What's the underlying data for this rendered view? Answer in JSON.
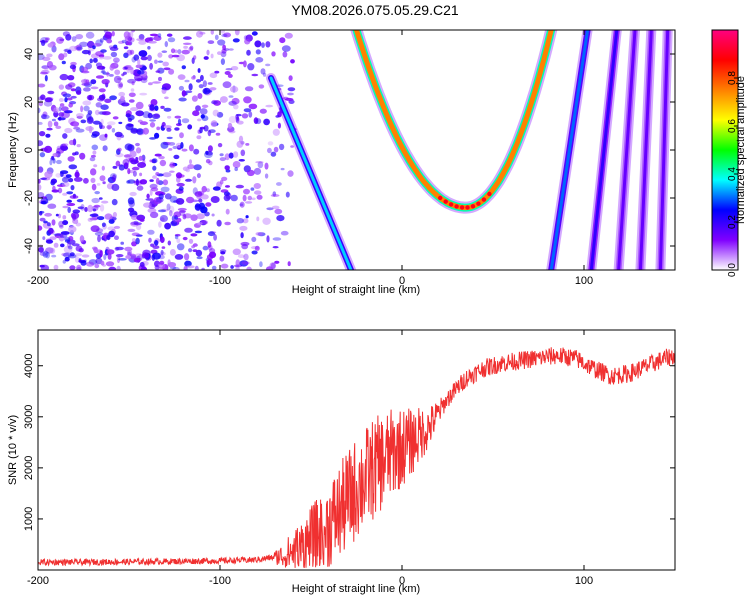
{
  "title": "YM08.2026.075.05.29.C21",
  "chart_data": [
    {
      "type": "heatmap",
      "xlabel": "Height of straight line (km)",
      "ylabel": "Frequency (Hz)",
      "xlim": [
        -200,
        150
      ],
      "ylim": [
        -50,
        50
      ],
      "xticks": [
        -200,
        -100,
        0,
        100
      ],
      "yticks": [
        -40,
        -20,
        0,
        20,
        40
      ],
      "colorbar": {
        "label": "Normalized spectral amplitude",
        "range": [
          0,
          1
        ],
        "ticks": [
          "0.0",
          "0.2",
          "0.4",
          "0.6",
          "0.8"
        ],
        "colormap": [
          "#ffffff",
          "#8000ff",
          "#0000ff",
          "#00ffff",
          "#00ff00",
          "#ffff00",
          "#ff8000",
          "#ff0000",
          "#ff0080"
        ]
      },
      "features": [
        {
          "name": "noise-region",
          "x_range": [
            -200,
            -60
          ],
          "amplitude": 0.2
        },
        {
          "name": "diagonal-ridge",
          "from": [
            -72,
            30
          ],
          "to": [
            -28,
            -50
          ],
          "amplitude": 0.35
        },
        {
          "name": "parabolic-ridge",
          "vertex": [
            35,
            -24
          ],
          "left_top": [
            -25,
            50
          ],
          "right_top": [
            82,
            50
          ],
          "amplitude": 0.75
        },
        {
          "name": "steep-line-1",
          "from": [
            82,
            -50
          ],
          "to": [
            102,
            50
          ],
          "amplitude": 0.3
        },
        {
          "name": "steep-line-2",
          "from": [
            104,
            -50
          ],
          "to": [
            118,
            50
          ],
          "amplitude": 0.2
        },
        {
          "name": "steep-line-3",
          "from": [
            119,
            -50
          ],
          "to": [
            128,
            50
          ],
          "amplitude": 0.15
        },
        {
          "name": "steep-line-4",
          "from": [
            131,
            -50
          ],
          "to": [
            137,
            50
          ],
          "amplitude": 0.15
        },
        {
          "name": "steep-line-5",
          "from": [
            142,
            -50
          ],
          "to": [
            146,
            50
          ],
          "amplitude": 0.15
        }
      ]
    },
    {
      "type": "line",
      "xlabel": "Height of straight line (km)",
      "ylabel": "SNR (10 * v/v)",
      "xlim": [
        -200,
        150
      ],
      "ylim": [
        0,
        4700
      ],
      "xticks": [
        -200,
        -100,
        0,
        100
      ],
      "yticks": [
        1000,
        2000,
        3000,
        4000
      ],
      "series": [
        {
          "name": "SNR",
          "color": "#f03030",
          "x": [
            -200,
            -150,
            -100,
            -80,
            -65,
            -55,
            -45,
            -35,
            -25,
            -15,
            -5,
            5,
            15,
            25,
            35,
            45,
            55,
            65,
            75,
            85,
            95,
            105,
            115,
            125,
            135,
            145,
            150
          ],
          "y": [
            150,
            160,
            180,
            200,
            280,
            450,
            700,
            1100,
            1600,
            2000,
            2300,
            2500,
            2800,
            3350,
            3750,
            3950,
            4050,
            4100,
            4150,
            4200,
            4150,
            3950,
            3800,
            3850,
            4000,
            4150,
            4200
          ]
        }
      ]
    }
  ]
}
